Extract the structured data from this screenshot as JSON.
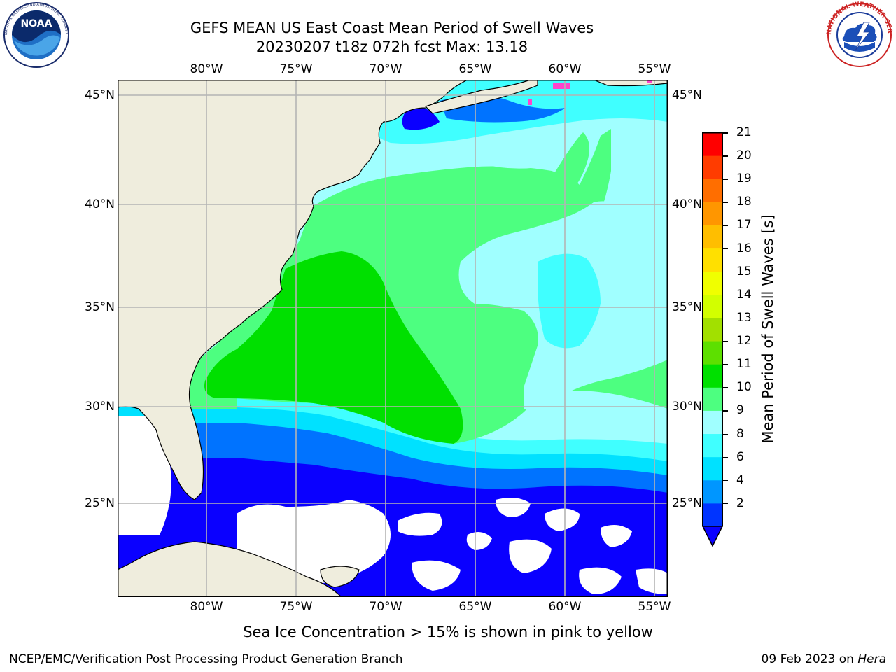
{
  "header": {
    "title_line1": "GEFS MEAN US East Coast Mean Period of Swell Waves",
    "title_line2": "20230207 t18z 072h fcst   Max: 13.18"
  },
  "logos": {
    "left": {
      "name": "noaa-logo",
      "text": "NOAA",
      "ring_text": "NATIONAL OCEANIC AND ATMOSPHERIC ADMINISTRATION · U.S. DEPARTMENT OF COMMERCE"
    },
    "right": {
      "name": "nws-logo",
      "ring_text": "NATIONAL WEATHER SERVICE"
    }
  },
  "map": {
    "lon_labels": [
      "80°W",
      "75°W",
      "70°W",
      "65°W",
      "60°W",
      "55°W"
    ],
    "lat_labels": [
      "45°N",
      "40°N",
      "35°N",
      "30°N",
      "25°N"
    ],
    "lon_range": [
      "85°W",
      "54°W"
    ],
    "lat_range": [
      "20.5°N",
      "45.8°N"
    ],
    "colors": {
      "land": "#efeddd",
      "grid": "#b4b4b4",
      "period_2_4": "#0a00ff",
      "period_4_6": "#0073ff",
      "period_6_8": "#00e1ff",
      "period_8_9": "#40ffff",
      "period_9_10": "#a0ffff",
      "period_10_11": "#4dff80",
      "period_11_12": "#00e000"
    }
  },
  "colorbar": {
    "label": "Mean Period of Swell Waves [s]",
    "ticks": [
      "21",
      "20",
      "19",
      "18",
      "17",
      "16",
      "15",
      "14",
      "13",
      "12",
      "11",
      "10",
      "9",
      "8",
      "6",
      "4",
      "2"
    ],
    "colors": [
      "#0034ff",
      "#0096ff",
      "#00e1ff",
      "#40ffff",
      "#a0ffff",
      "#4dff80",
      "#00e000",
      "#5de000",
      "#a2e000",
      "#d2ff00",
      "#f0ff00",
      "#ffe000",
      "#ffbe00",
      "#ff9600",
      "#ff6e00",
      "#ff3c00",
      "#ff0000"
    ],
    "extend_color": "#0a00ff"
  },
  "note": "Sea Ice Concentration > 15% is shown in pink to yellow",
  "footer": {
    "left": "NCEP/EMC/Verification Post Processing Product Generation Branch",
    "date": "09 Feb 2023 on ",
    "machine": "Hera"
  }
}
